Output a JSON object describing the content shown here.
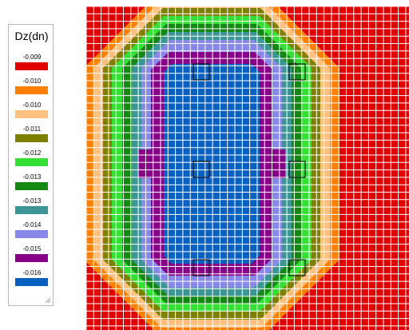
{
  "legend": {
    "title": "Dz(dn)",
    "items": [
      {
        "label": "-0.009",
        "color": "#e00000"
      },
      {
        "label": "-0.010",
        "color": "#ff8000"
      },
      {
        "label": "-0.010",
        "color": "#ffc080"
      },
      {
        "label": "-0.011",
        "color": "#808000"
      },
      {
        "label": "-0.012",
        "color": "#33e033"
      },
      {
        "label": "-0.013",
        "color": "#138813"
      },
      {
        "label": "-0.013",
        "color": "#3c9696"
      },
      {
        "label": "-0.014",
        "color": "#8888e8"
      },
      {
        "label": "-0.015",
        "color": "#880088"
      },
      {
        "label": "-0.016",
        "color": "#0860c0"
      }
    ]
  },
  "plot": {
    "grid_color": "#ffffff",
    "support_outline_color": "#000000",
    "supports": [
      "support-top-left",
      "support-top-right",
      "support-mid-left",
      "support-mid-right",
      "support-bottom-left",
      "support-bottom-right"
    ]
  }
}
